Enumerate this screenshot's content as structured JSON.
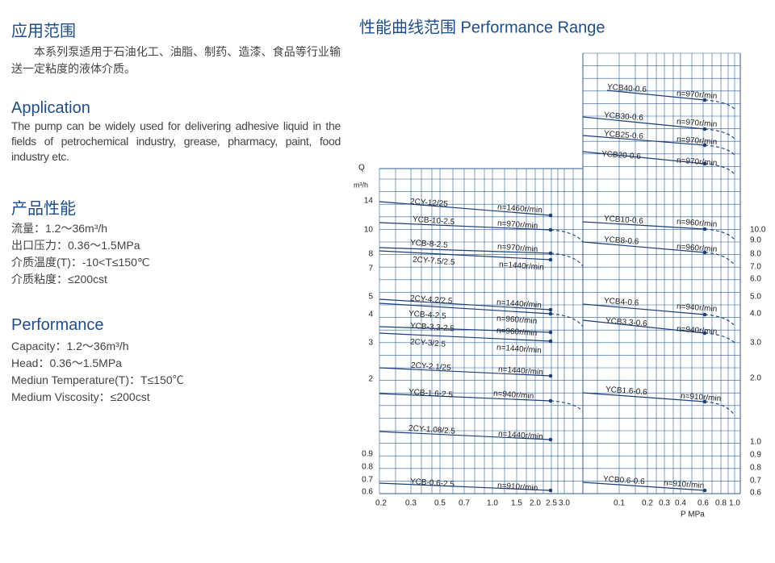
{
  "left": {
    "application_cn": {
      "heading": "应用范围",
      "text": "本系列泵适用于石油化工、油脂、制药、造漆、食品等行业输送一定粘度的液体介质。"
    },
    "application_en": {
      "heading": "Application",
      "text": "The pump can be widely used for delivering adhesive liquid in the fields of petrochemical industry, grease, pharmacy, paint, food industry etc."
    },
    "performance_cn": {
      "heading": "产品性能",
      "items": [
        "流量：1.2～36m³/h",
        "出口压力：0.36～1.5MPa",
        "介质温度(T)：-10<T≤150℃",
        "介质粘度：≤200cst"
      ]
    },
    "performance_en": {
      "heading": "Performance",
      "items": [
        "Capacity：1.2～36m³/h",
        "Head：0.36～1.5MPa",
        "Mediun Temperature(T)：T≤150℃",
        "Medium Viscosity：≤200cst"
      ]
    }
  },
  "diagram": {
    "title": "性能曲线范围 Performance Range",
    "y_axis_label": "Q",
    "y_unit": "m³/h",
    "x_axis_label": "P  MPa",
    "left_y_ticks": [
      "14",
      "10",
      "8",
      "7",
      "5",
      "4",
      "3",
      "2",
      "0.9",
      "0.8",
      "0.7",
      "0.6"
    ],
    "right_y_ticks": [
      "10.0",
      "9.0",
      "8.0",
      "7.0",
      "6.0",
      "5.0",
      "4.0",
      "3.0",
      "2.0",
      "1.0",
      "0.9",
      "0.8",
      "0.7",
      "0.6"
    ],
    "left_x_ticks": [
      "0.2",
      "0.3",
      "0.5",
      "0.7",
      "1.0",
      "1.5",
      "2.0",
      "2.5",
      "3.0"
    ],
    "right_x_ticks": [
      "0.1",
      "0.2",
      "0.3",
      "0.4",
      "0.6",
      "0.8",
      "1.0"
    ],
    "curves": [
      {
        "name": "2CY-12/25",
        "speed": "n=1460r/min"
      },
      {
        "name": "YCB-10-2.5",
        "speed": "n=970r/min"
      },
      {
        "name": "YCB-8-2.5",
        "speed": "n=970r/min"
      },
      {
        "name": "2CY-7.5/2.5",
        "speed": "n=1440r/min"
      },
      {
        "name": "2CY-4.2/2.5",
        "speed": "n=1440r/min"
      },
      {
        "name": "YCB-4-2.5",
        "speed": "n=960r/min"
      },
      {
        "name": "YCB-3.3-2.5",
        "speed": "n=960r/min"
      },
      {
        "name": "2CY-3/2.5",
        "speed": "n=1440r/min"
      },
      {
        "name": "2CY-2.1/25",
        "speed": "n=1440r/min"
      },
      {
        "name": "YCB-1.6-2.5",
        "speed": "n=940r/min"
      },
      {
        "name": "2CY-1.08/2.5",
        "speed": "n=1440r/min"
      },
      {
        "name": "YCB-0.6-2.5",
        "speed": "n=910r/min"
      },
      {
        "name": "YCB40-0.6",
        "speed": "n=970r/min"
      },
      {
        "name": "YCB30-0.6",
        "speed": "n=970r/min"
      },
      {
        "name": "YCB25-0.6",
        "speed": "n=970r/min"
      },
      {
        "name": "YCB20-0.6",
        "speed": "n=970r/min"
      },
      {
        "name": "YCB10-0.6",
        "speed": "n=960r/min"
      },
      {
        "name": "YCB8-0.6",
        "speed": "n=960r/min"
      },
      {
        "name": "YCB4-0.6",
        "speed": "n=940r/min"
      },
      {
        "name": "YCB3.3-0.6",
        "speed": "n=940r/min"
      },
      {
        "name": "YCB1.6-0.6",
        "speed": "n=910r/min"
      },
      {
        "name": "YCB0.6-0.6",
        "speed": "n=910r/min"
      }
    ]
  }
}
